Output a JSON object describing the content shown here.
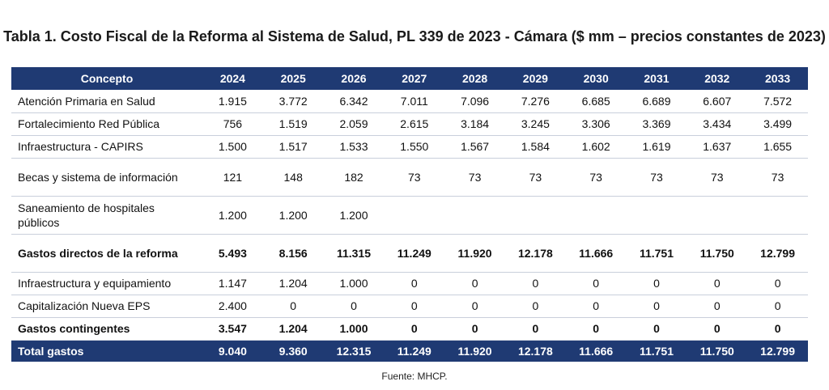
{
  "title": "Tabla 1. Costo Fiscal de la Reforma al Sistema de Salud, PL 339 de 2023 - Cámara ($ mm – precios constantes de 2023)",
  "header": {
    "concept": "Concepto",
    "years": [
      "2024",
      "2025",
      "2026",
      "2027",
      "2028",
      "2029",
      "2030",
      "2031",
      "2032",
      "2033"
    ]
  },
  "rows": [
    {
      "label": "Atención Primaria en Salud",
      "values": [
        "1.915",
        "3.772",
        "6.342",
        "7.011",
        "7.096",
        "7.276",
        "6.685",
        "6.689",
        "6.607",
        "7.572"
      ]
    },
    {
      "label": "Fortalecimiento Red Pública",
      "values": [
        "756",
        "1.519",
        "2.059",
        "2.615",
        "3.184",
        "3.245",
        "3.306",
        "3.369",
        "3.434",
        "3.499"
      ]
    },
    {
      "label": "Infraestructura - CAPIRS",
      "values": [
        "1.500",
        "1.517",
        "1.533",
        "1.550",
        "1.567",
        "1.584",
        "1.602",
        "1.619",
        "1.637",
        "1.655"
      ]
    },
    {
      "label": "Becas y sistema de información",
      "values": [
        "121",
        "148",
        "182",
        "73",
        "73",
        "73",
        "73",
        "73",
        "73",
        "73"
      ]
    },
    {
      "label": "Saneamiento de hospitales públicos",
      "values": [
        "1.200",
        "1.200",
        "1.200",
        "",
        "",
        "",
        "",
        "",
        "",
        ""
      ]
    },
    {
      "label": "Gastos directos de la reforma",
      "values": [
        "5.493",
        "8.156",
        "11.315",
        "11.249",
        "11.920",
        "12.178",
        "11.666",
        "11.751",
        "11.750",
        "12.799"
      ]
    },
    {
      "label": "Infraestructura y equipamiento",
      "values": [
        "1.147",
        "1.204",
        "1.000",
        "0",
        "0",
        "0",
        "0",
        "0",
        "0",
        "0"
      ]
    },
    {
      "label": "Capitalización Nueva EPS",
      "values": [
        "2.400",
        "0",
        "0",
        "0",
        "0",
        "0",
        "0",
        "0",
        "0",
        "0"
      ]
    },
    {
      "label": "Gastos contingentes",
      "values": [
        "3.547",
        "1.204",
        "1.000",
        "0",
        "0",
        "0",
        "0",
        "0",
        "0",
        "0"
      ]
    },
    {
      "label": "Total gastos",
      "values": [
        "9.040",
        "9.360",
        "12.315",
        "11.249",
        "11.920",
        "12.178",
        "11.666",
        "11.751",
        "11.750",
        "12.799"
      ]
    }
  ],
  "source": "Fuente: MHCP.",
  "colors": {
    "header_bg": "#1f3a73",
    "header_text": "#ffffff",
    "row_border": "#c9cfdb"
  }
}
